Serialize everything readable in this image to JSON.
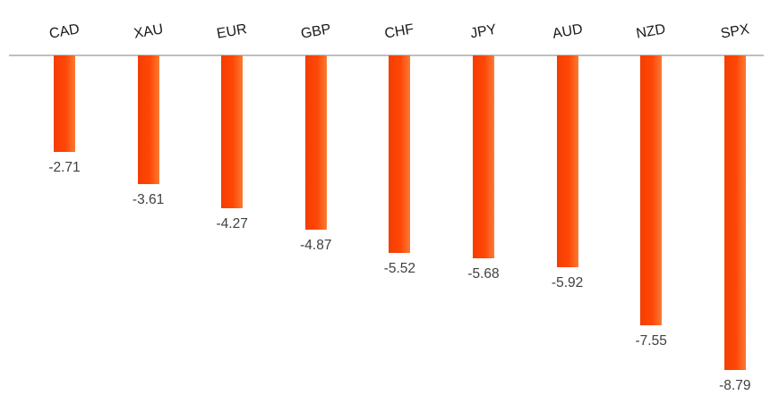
{
  "chart_data": {
    "type": "bar",
    "title": "",
    "xlabel": "",
    "ylabel": "",
    "categories": [
      "CAD",
      "XAU",
      "EUR",
      "GBP",
      "CHF",
      "JPY",
      "AUD",
      "NZD",
      "SPX"
    ],
    "values": [
      -2.71,
      -3.61,
      -4.27,
      -4.87,
      -5.52,
      -5.68,
      -5.92,
      -7.55,
      -8.79
    ],
    "value_labels": [
      "-2.71",
      "-3.61",
      "-4.27",
      "-4.87",
      "-5.52",
      "-5.68",
      "-5.92",
      "-7.55",
      "-8.79"
    ],
    "ylim": [
      -9.5,
      0
    ],
    "baseline_value": 0,
    "grid": false,
    "legend_position": "none",
    "orientation": "vertical",
    "colors": {
      "bar_gradient_left": "#f43d02",
      "bar_gradient_mid": "#ff4706",
      "bar_gradient_right": "#f87b33",
      "axis_line": "#bfbfbf",
      "category_label": "#1a1a1a",
      "value_label": "#404040",
      "background": "#ffffff"
    }
  }
}
